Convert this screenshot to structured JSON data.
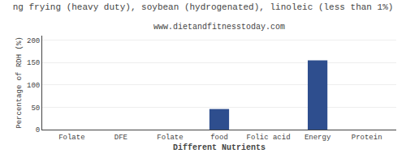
{
  "chart_data": {
    "type": "bar",
    "title": "ng frying (heavy duty), soybean (hydrogenated), linoleic (less than 1%)",
    "subtitle": "www.dietandfitnesstoday.com",
    "xlabel": "Different Nutrients",
    "ylabel": "Percentage of RDH (%)",
    "categories": [
      "Folate",
      "DFE",
      "Folate",
      "food",
      "Folic acid",
      "Energy",
      "Protein"
    ],
    "values": [
      0,
      0,
      0,
      46,
      0,
      155,
      0
    ],
    "color": "#2e4e8e",
    "ylim": [
      0,
      210
    ],
    "yticks": [
      0,
      50,
      100,
      150,
      200
    ],
    "grid": true
  }
}
